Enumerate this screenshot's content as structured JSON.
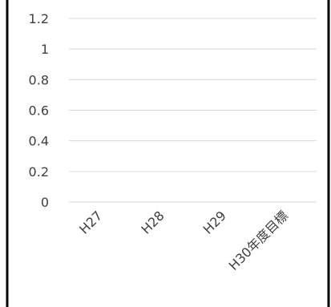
{
  "chart_data": {
    "type": "bar",
    "title": "",
    "xlabel": "",
    "ylabel": "",
    "categories": [
      "H27",
      "H28",
      "H29",
      "H30年度目標"
    ],
    "series": [],
    "ylim": [
      0,
      1.2
    ],
    "yticks": [
      "0",
      "0.2",
      "0.4",
      "0.6",
      "0.8",
      "1",
      "1.2"
    ],
    "grid": true,
    "legend": "none"
  },
  "colors": {
    "gridline": "#d9d9d9",
    "tick_text": "#404040",
    "border": "#000000",
    "background": "#ffffff"
  }
}
